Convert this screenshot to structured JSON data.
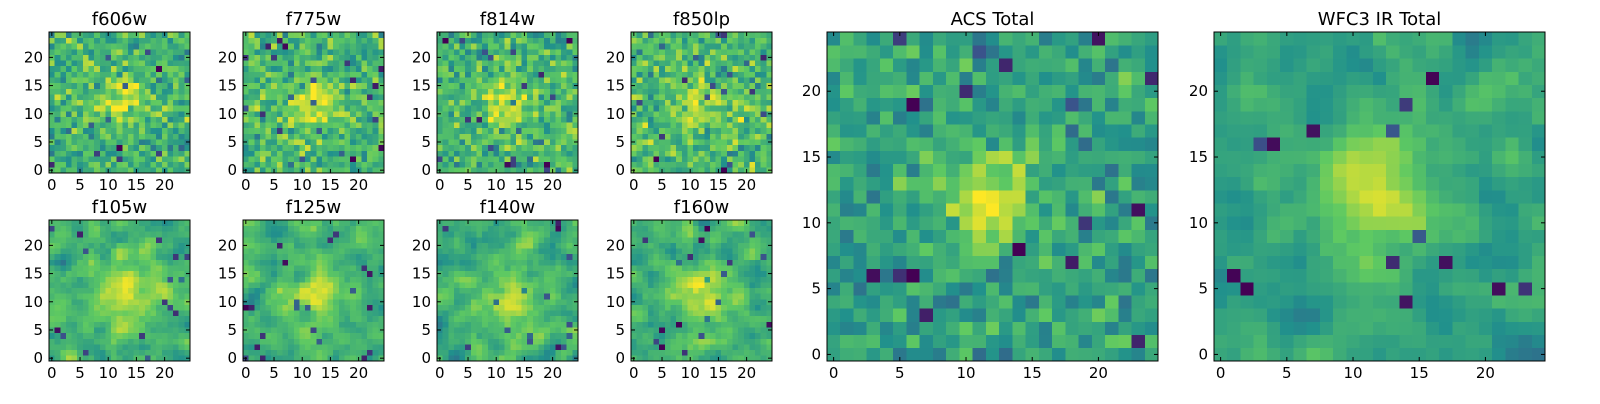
{
  "figure": {
    "colormap": "viridis",
    "color_stops": [
      "#440154",
      "#3b528b",
      "#21918c",
      "#5ec962",
      "#fde725"
    ],
    "axis_color": "#000000"
  },
  "chart_data": [
    {
      "type": "heatmap",
      "title": "f606w",
      "grid_size": [
        25,
        25
      ],
      "xlim": [
        -0.5,
        24.5
      ],
      "ylim": [
        -0.5,
        24.5
      ],
      "xticks": [
        0,
        5,
        10,
        15,
        20
      ],
      "yticks": [
        0,
        5,
        10,
        15,
        20
      ],
      "xtick_labels": [
        "0",
        "5",
        "10",
        "15",
        "20"
      ],
      "ytick_labels": [
        "0",
        "5",
        "10",
        "15",
        "20"
      ],
      "value_range": [
        0,
        1
      ],
      "pattern": {
        "center": [
          12,
          12
        ],
        "width": 3.0,
        "peak": 0.3,
        "base": 0.65,
        "noise": 0.16,
        "smooth": 0,
        "seed": 11
      }
    },
    {
      "type": "heatmap",
      "title": "f775w",
      "grid_size": [
        25,
        25
      ],
      "xlim": [
        -0.5,
        24.5
      ],
      "ylim": [
        -0.5,
        24.5
      ],
      "xticks": [
        0,
        5,
        10,
        15,
        20
      ],
      "yticks": [
        0,
        5,
        10,
        15,
        20
      ],
      "xtick_labels": [
        "0",
        "5",
        "10",
        "15",
        "20"
      ],
      "ytick_labels": [
        "0",
        "5",
        "10",
        "15",
        "20"
      ],
      "value_range": [
        0,
        1
      ],
      "pattern": {
        "center": [
          12,
          12
        ],
        "width": 3.0,
        "peak": 0.3,
        "base": 0.67,
        "noise": 0.16,
        "smooth": 0,
        "seed": 23
      }
    },
    {
      "type": "heatmap",
      "title": "f814w",
      "grid_size": [
        25,
        25
      ],
      "xlim": [
        -0.5,
        24.5
      ],
      "ylim": [
        -0.5,
        24.5
      ],
      "xticks": [
        0,
        5,
        10,
        15,
        20
      ],
      "yticks": [
        0,
        5,
        10,
        15,
        20
      ],
      "xtick_labels": [
        "0",
        "5",
        "10",
        "15",
        "20"
      ],
      "ytick_labels": [
        "0",
        "5",
        "10",
        "15",
        "20"
      ],
      "value_range": [
        0,
        1
      ],
      "pattern": {
        "center": [
          12,
          12
        ],
        "width": 3.0,
        "peak": 0.28,
        "base": 0.66,
        "noise": 0.16,
        "smooth": 0,
        "seed": 37
      }
    },
    {
      "type": "heatmap",
      "title": "f850lp",
      "grid_size": [
        25,
        25
      ],
      "xlim": [
        -0.5,
        24.5
      ],
      "ylim": [
        -0.5,
        24.5
      ],
      "xticks": [
        0,
        5,
        10,
        15,
        20
      ],
      "yticks": [
        0,
        5,
        10,
        15,
        20
      ],
      "xtick_labels": [
        "0",
        "5",
        "10",
        "15",
        "20"
      ],
      "ytick_labels": [
        "0",
        "5",
        "10",
        "15",
        "20"
      ],
      "value_range": [
        0,
        1
      ],
      "pattern": {
        "center": [
          12,
          12
        ],
        "width": 3.0,
        "peak": 0.22,
        "base": 0.68,
        "noise": 0.17,
        "smooth": 0,
        "seed": 41
      }
    },
    {
      "type": "heatmap",
      "title": "f105w",
      "grid_size": [
        25,
        25
      ],
      "xlim": [
        -0.5,
        24.5
      ],
      "ylim": [
        -0.5,
        24.5
      ],
      "xticks": [
        0,
        5,
        10,
        15,
        20
      ],
      "yticks": [
        0,
        5,
        10,
        15,
        20
      ],
      "xtick_labels": [
        "0",
        "5",
        "10",
        "15",
        "20"
      ],
      "ytick_labels": [
        "0",
        "5",
        "10",
        "15",
        "20"
      ],
      "value_range": [
        0,
        1
      ],
      "pattern": {
        "center": [
          13,
          11
        ],
        "width": 3.5,
        "peak": 0.28,
        "base": 0.66,
        "noise": 0.15,
        "smooth": 1,
        "seed": 53
      }
    },
    {
      "type": "heatmap",
      "title": "f125w",
      "grid_size": [
        25,
        25
      ],
      "xlim": [
        -0.5,
        24.5
      ],
      "ylim": [
        -0.5,
        24.5
      ],
      "xticks": [
        0,
        5,
        10,
        15,
        20
      ],
      "yticks": [
        0,
        5,
        10,
        15,
        20
      ],
      "xtick_labels": [
        "0",
        "5",
        "10",
        "15",
        "20"
      ],
      "ytick_labels": [
        "0",
        "5",
        "10",
        "15",
        "20"
      ],
      "value_range": [
        0,
        1
      ],
      "pattern": {
        "center": [
          12,
          11
        ],
        "width": 3.5,
        "peak": 0.26,
        "base": 0.64,
        "noise": 0.16,
        "smooth": 1,
        "seed": 67
      }
    },
    {
      "type": "heatmap",
      "title": "f140w",
      "grid_size": [
        25,
        25
      ],
      "xlim": [
        -0.5,
        24.5
      ],
      "ylim": [
        -0.5,
        24.5
      ],
      "xticks": [
        0,
        5,
        10,
        15,
        20
      ],
      "yticks": [
        0,
        5,
        10,
        15,
        20
      ],
      "xtick_labels": [
        "0",
        "5",
        "10",
        "15",
        "20"
      ],
      "ytick_labels": [
        "0",
        "5",
        "10",
        "15",
        "20"
      ],
      "value_range": [
        0,
        1
      ],
      "pattern": {
        "center": [
          13,
          10
        ],
        "width": 3.5,
        "peak": 0.26,
        "base": 0.64,
        "noise": 0.17,
        "smooth": 1,
        "seed": 79
      }
    },
    {
      "type": "heatmap",
      "title": "f160w",
      "grid_size": [
        25,
        25
      ],
      "xlim": [
        -0.5,
        24.5
      ],
      "ylim": [
        -0.5,
        24.5
      ],
      "xticks": [
        0,
        5,
        10,
        15,
        20
      ],
      "yticks": [
        0,
        5,
        10,
        15,
        20
      ],
      "xtick_labels": [
        "0",
        "5",
        "10",
        "15",
        "20"
      ],
      "ytick_labels": [
        "0",
        "5",
        "10",
        "15",
        "20"
      ],
      "value_range": [
        0,
        1
      ],
      "pattern": {
        "center": [
          12,
          11
        ],
        "width": 3.8,
        "peak": 0.3,
        "base": 0.64,
        "noise": 0.17,
        "smooth": 1,
        "seed": 97
      }
    },
    {
      "type": "heatmap",
      "title": "ACS Total",
      "grid_size": [
        25,
        25
      ],
      "xlim": [
        -0.5,
        24.5
      ],
      "ylim": [
        -0.5,
        24.5
      ],
      "xticks": [
        0,
        5,
        10,
        15,
        20
      ],
      "yticks": [
        0,
        5,
        10,
        15,
        20
      ],
      "xtick_labels": [
        "0",
        "5",
        "10",
        "15",
        "20"
      ],
      "ytick_labels": [
        "0",
        "5",
        "10",
        "15",
        "20"
      ],
      "value_range": [
        0,
        1
      ],
      "pattern": {
        "center": [
          12,
          12
        ],
        "width": 2.3,
        "peak": 0.38,
        "base": 0.58,
        "noise": 0.14,
        "smooth": 0,
        "seed": 101
      }
    },
    {
      "type": "heatmap",
      "title": "WFC3 IR Total",
      "grid_size": [
        25,
        25
      ],
      "xlim": [
        -0.5,
        24.5
      ],
      "ylim": [
        -0.5,
        24.5
      ],
      "xticks": [
        0,
        5,
        10,
        15,
        20
      ],
      "yticks": [
        0,
        5,
        10,
        15,
        20
      ],
      "xtick_labels": [
        "0",
        "5",
        "10",
        "15",
        "20"
      ],
      "ytick_labels": [
        "0",
        "5",
        "10",
        "15",
        "20"
      ],
      "value_range": [
        0,
        1
      ],
      "pattern": {
        "center": [
          12,
          12
        ],
        "width": 3.0,
        "peak": 0.35,
        "base": 0.58,
        "noise": 0.13,
        "smooth": 1,
        "seed": 113
      }
    }
  ]
}
